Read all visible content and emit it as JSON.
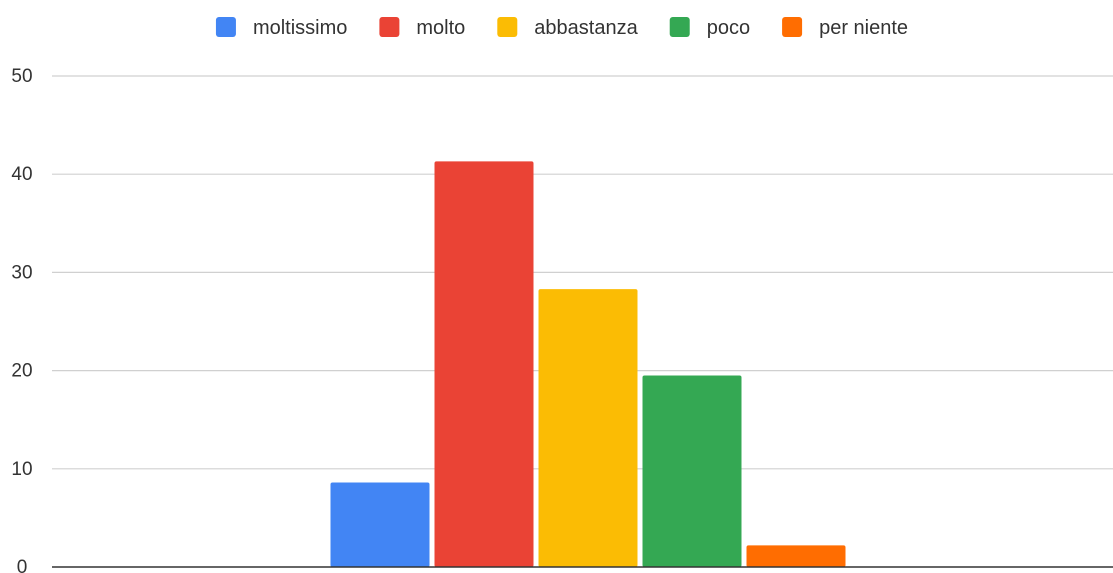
{
  "chart_data": {
    "type": "bar",
    "title": "",
    "xlabel": "",
    "ylabel": "",
    "categories": [
      ""
    ],
    "series": [
      {
        "name": "moltissimo",
        "values": [
          8.6
        ],
        "color": "#4285f4"
      },
      {
        "name": "molto",
        "values": [
          41.3
        ],
        "color": "#ea4335"
      },
      {
        "name": "abbastanza",
        "values": [
          28.3
        ],
        "color": "#fbbc04"
      },
      {
        "name": "poco",
        "values": [
          19.5
        ],
        "color": "#34a853"
      },
      {
        "name": "per niente",
        "values": [
          2.2
        ],
        "color": "#ff6d01"
      }
    ],
    "ylim": [
      0,
      50
    ],
    "yticks": [
      "0",
      "10",
      "20",
      "30",
      "40",
      "50"
    ],
    "grid": true,
    "legend_position": "top-center",
    "gridline_color": "#d0d0d0",
    "axis_color": "#333333"
  }
}
